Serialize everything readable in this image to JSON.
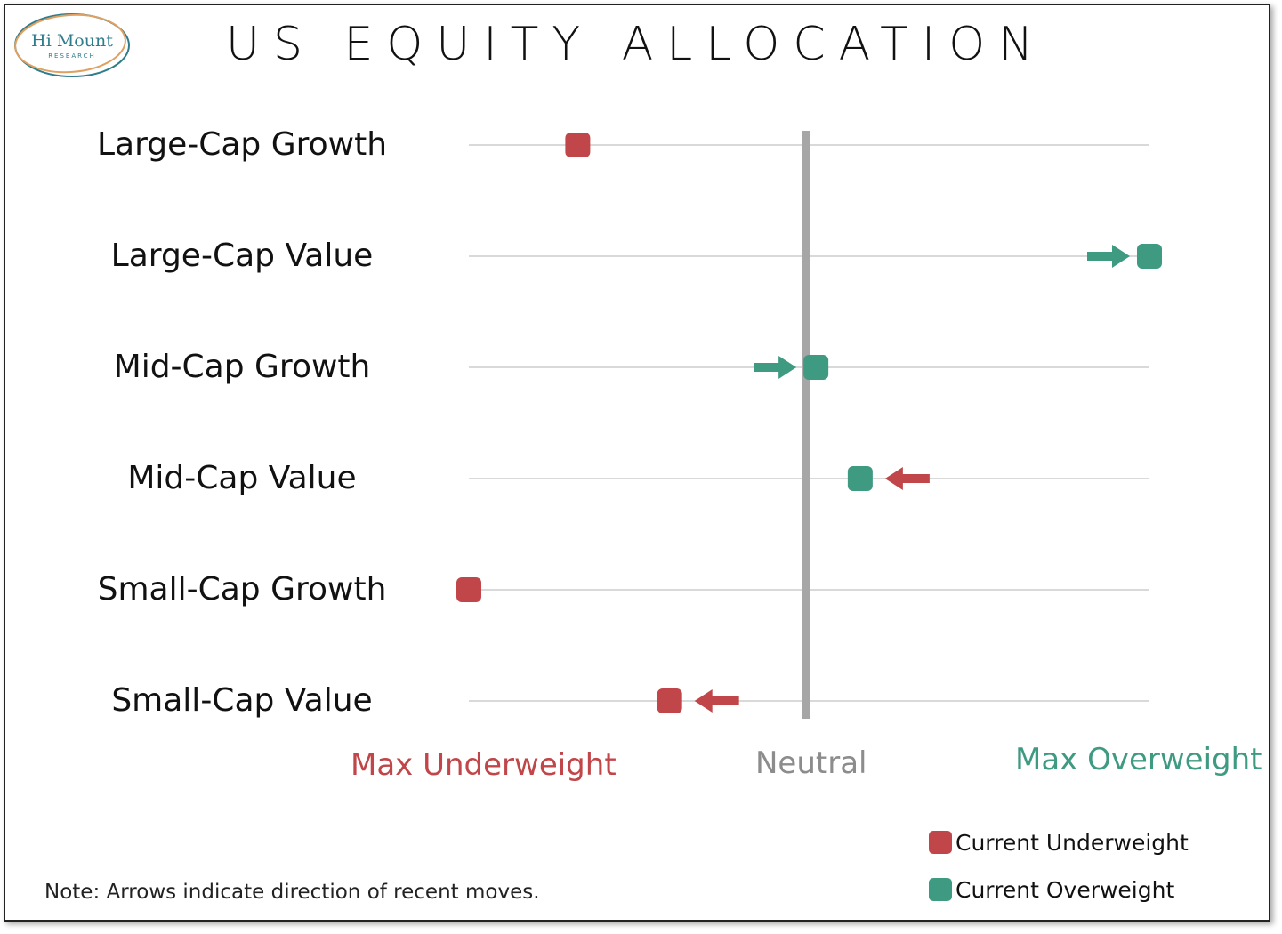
{
  "logo": {
    "name": "Hi Mount",
    "subtitle": "RESEARCH"
  },
  "chart_data": {
    "type": "scatter",
    "title": "US EQUITY ALLOCATION",
    "categories": [
      "Large-Cap Growth",
      "Large-Cap Value",
      "Mid-Cap Growth",
      "Mid-Cap Value",
      "Small-Cap Growth",
      "Small-Cap Value"
    ],
    "xlim": [
      -1,
      1
    ],
    "x_axis_labels": {
      "min": "Max Underweight",
      "mid": "Neutral",
      "max": "Max Overweight"
    },
    "series": [
      {
        "name": "Current Underweight",
        "color": "#c0464a",
        "points": [
          {
            "category": "Large-Cap Growth",
            "x": -0.68
          },
          {
            "category": "Small-Cap Growth",
            "x": -1.0
          },
          {
            "category": "Small-Cap Value",
            "x": -0.41
          }
        ]
      },
      {
        "name": "Current Overweight",
        "color": "#3f9a82",
        "points": [
          {
            "category": "Large-Cap Value",
            "x": 1.0
          },
          {
            "category": "Mid-Cap Growth",
            "x": 0.02
          },
          {
            "category": "Mid-Cap Value",
            "x": 0.15
          }
        ]
      }
    ],
    "recent_moves": [
      {
        "category": "Large-Cap Value",
        "direction": "right",
        "color": "#3f9a82"
      },
      {
        "category": "Mid-Cap Growth",
        "direction": "right",
        "color": "#3f9a82"
      },
      {
        "category": "Mid-Cap Value",
        "direction": "left",
        "color": "#c0464a"
      },
      {
        "category": "Small-Cap Value",
        "direction": "left",
        "color": "#c0464a"
      }
    ],
    "grid": true,
    "legend_placement": "bottom-right"
  },
  "colors": {
    "underweight": "#c0464a",
    "overweight": "#3f9a82",
    "neutral": "#a6a6a6",
    "gridline": "#d9d9d9"
  },
  "note": "Note: Arrows indicate direction of recent moves."
}
